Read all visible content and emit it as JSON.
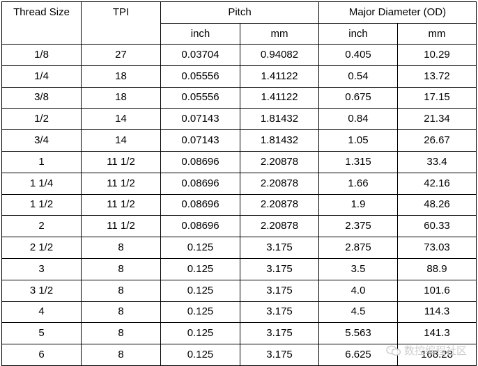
{
  "table": {
    "headers": {
      "thread_size": "Thread Size",
      "tpi": "TPI",
      "pitch": "Pitch",
      "major_diameter": "Major Diameter (OD)",
      "pitch_inch": "inch",
      "pitch_mm": "mm",
      "od_inch": "inch",
      "od_mm": "mm"
    },
    "rows": [
      [
        "1/8",
        "27",
        "0.03704",
        "0.94082",
        "0.405",
        "10.29"
      ],
      [
        "1/4",
        "18",
        "0.05556",
        "1.41122",
        "0.54",
        "13.72"
      ],
      [
        "3/8",
        "18",
        "0.05556",
        "1.41122",
        "0.675",
        "17.15"
      ],
      [
        "1/2",
        "14",
        "0.07143",
        "1.81432",
        "0.84",
        "21.34"
      ],
      [
        "3/4",
        "14",
        "0.07143",
        "1.81432",
        "1.05",
        "26.67"
      ],
      [
        "1",
        "11 1/2",
        "0.08696",
        "2.20878",
        "1.315",
        "33.4"
      ],
      [
        "1 1/4",
        "11 1/2",
        "0.08696",
        "2.20878",
        "1.66",
        "42.16"
      ],
      [
        "1 1/2",
        "11 1/2",
        "0.08696",
        "2.20878",
        "1.9",
        "48.26"
      ],
      [
        "2",
        "11 1/2",
        "0.08696",
        "2.20878",
        "2.375",
        "60.33"
      ],
      [
        "2 1/2",
        "8",
        "0.125",
        "3.175",
        "2.875",
        "73.03"
      ],
      [
        "3",
        "8",
        "0.125",
        "3.175",
        "3.5",
        "88.9"
      ],
      [
        "3 1/2",
        "8",
        "0.125",
        "3.175",
        "4.0",
        "101.6"
      ],
      [
        "4",
        "8",
        "0.125",
        "3.175",
        "4.5",
        "114.3"
      ],
      [
        "5",
        "8",
        "0.125",
        "3.175",
        "5.563",
        "141.3"
      ],
      [
        "6",
        "8",
        "0.125",
        "3.175",
        "6.625",
        "168.28"
      ]
    ]
  },
  "watermark": {
    "text": "数控编程社区",
    "icon": "wechat-icon",
    "color": "#c8c8c8"
  }
}
